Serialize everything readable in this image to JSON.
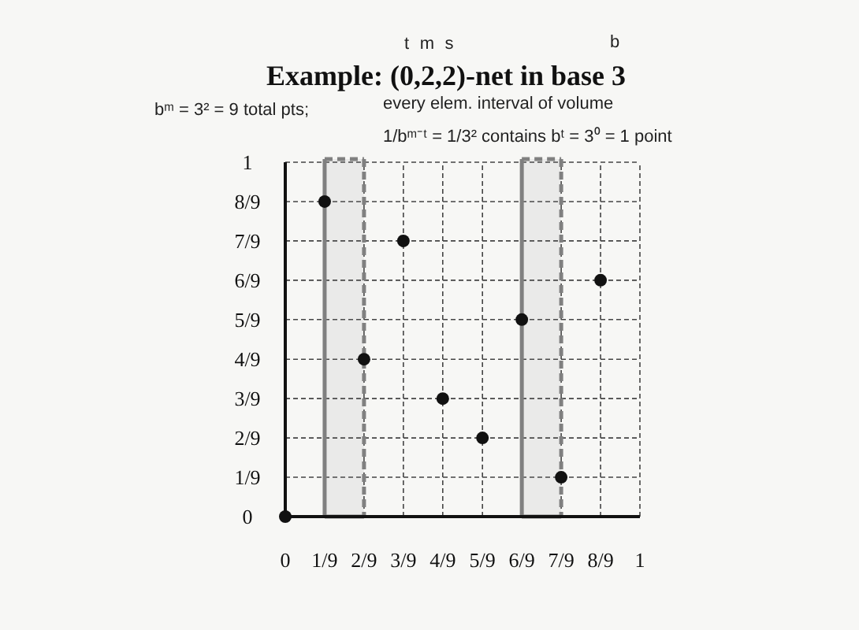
{
  "chart_data": {
    "type": "scatter",
    "title": "Example: (0,2,2)-net in base 3",
    "annotations": [
      "t",
      "m",
      "s",
      "b",
      "bᵐ = 3² = 9 total pts;",
      "every elem. interval of volume",
      "1/bᵐ⁻ᵗ = 1/3² contains bᵗ = 3⁰ = 1 point"
    ],
    "x": [
      0,
      0.111,
      0.222,
      0.333,
      0.444,
      0.556,
      0.667,
      0.778,
      0.889
    ],
    "values": [
      0,
      0.889,
      0.444,
      0.778,
      0.333,
      0.222,
      0.556,
      0.111,
      0.667
    ],
    "color": "#111111",
    "marker": "circle",
    "xlim": [
      0,
      1
    ],
    "ylim": [
      0,
      1
    ],
    "xticks": [
      0,
      {
        "value": 0.111,
        "label": "1/9"
      },
      {
        "value": 0.222,
        "label": "2/9"
      },
      {
        "value": 0.333,
        "label": "3/9"
      },
      {
        "value": 0.444,
        "label": "4/9"
      },
      {
        "value": 0.556,
        "label": "5/9"
      },
      {
        "value": 0.667,
        "label": "6/9"
      },
      {
        "value": 0.778,
        "label": "7/9"
      },
      {
        "value": 0.889,
        "label": "8/9"
      },
      1
    ],
    "yticks": [
      0,
      {
        "value": 0.111,
        "label": "1/9"
      },
      {
        "value": 0.222,
        "label": "2/9"
      },
      {
        "value": 0.333,
        "label": "3/9"
      },
      {
        "value": 0.444,
        "label": "4/9"
      },
      {
        "value": 0.556,
        "label": "5/9"
      },
      {
        "value": 0.667,
        "label": "6/9"
      },
      {
        "value": 0.778,
        "label": "7/9"
      },
      {
        "value": 0.889,
        "label": "8/9"
      },
      1
    ],
    "grid": true,
    "bands": [
      {
        "axis": "x",
        "from": 0.111,
        "to": 0.222,
        "color": "#808080"
      },
      {
        "axis": "x",
        "from": 0.667,
        "to": 0.778,
        "color": "#808080"
      }
    ]
  }
}
